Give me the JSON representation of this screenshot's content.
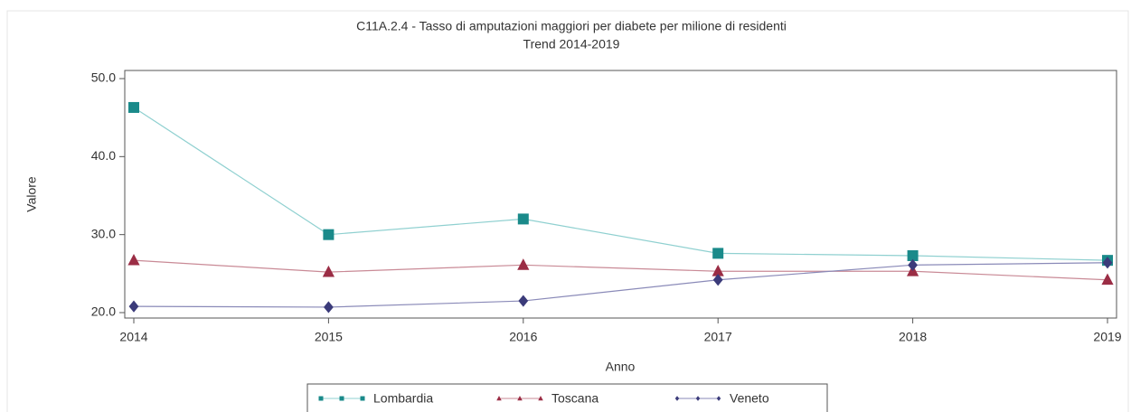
{
  "chart_data": {
    "type": "line",
    "title": "C11A.2.4 - Tasso di amputazioni maggiori per diabete per milione di residenti",
    "subtitle": "Trend 2014-2019",
    "x_label": "Anno",
    "y_label": "Valore",
    "x": [
      2014,
      2015,
      2016,
      2017,
      2018,
      2019
    ],
    "xlim": [
      2014,
      2019
    ],
    "xticks": [
      2014,
      2015,
      2016,
      2017,
      2018,
      2019
    ],
    "ylim": [
      20,
      50
    ],
    "yticks": [
      {
        "value": 20,
        "label": "20.0"
      },
      {
        "value": 30,
        "label": "30.0"
      },
      {
        "value": 40,
        "label": "40.0"
      },
      {
        "value": 50,
        "label": "50.0"
      }
    ],
    "legend": "bottom",
    "series": [
      {
        "name": "Lombardia",
        "color": "#1a8a8a",
        "line_color": "#8fd0d0",
        "marker": "square",
        "values": [
          46.3,
          30.0,
          32.0,
          27.6,
          27.3,
          26.7
        ]
      },
      {
        "name": "Toscana",
        "color": "#9b2d45",
        "line_color": "#c98a96",
        "marker": "triangle",
        "values": [
          26.7,
          25.2,
          26.1,
          25.3,
          25.3,
          24.2
        ]
      },
      {
        "name": "Veneto",
        "color": "#3b3b7a",
        "line_color": "#8a8ab8",
        "marker": "diamond",
        "values": [
          20.8,
          20.7,
          21.5,
          24.2,
          26.1,
          26.4
        ]
      }
    ]
  }
}
